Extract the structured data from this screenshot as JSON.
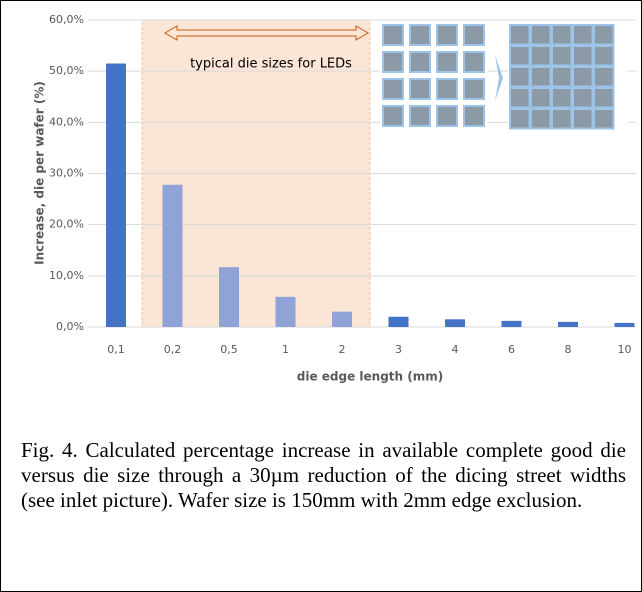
{
  "chart_data": {
    "type": "bar",
    "x_label": "die edge length (mm)",
    "y_label": "Increase, die per wafer (%)",
    "annotation": "typical die sizes for LEDs",
    "categories": [
      "0,1",
      "0,2",
      "0,5",
      "1",
      "2",
      "3",
      "4",
      "6",
      "8",
      "10"
    ],
    "values": [
      51.5,
      27.8,
      11.7,
      5.9,
      3.0,
      2.0,
      1.5,
      1.2,
      1.0,
      0.8
    ],
    "colors": [
      "#4472c4",
      "#8fa3d6",
      "#8fa3d6",
      "#8fa3d6",
      "#8fa3d6",
      "#4472c4",
      "#4472c4",
      "#4472c4",
      "#4472c4",
      "#4472c4"
    ],
    "ylim": [
      0,
      60
    ],
    "yticks": [
      {
        "value": 0,
        "label": "0,0%"
      },
      {
        "value": 10,
        "label": "10,0%"
      },
      {
        "value": 20,
        "label": "20,0%"
      },
      {
        "value": 30,
        "label": "30,0%"
      },
      {
        "value": 40,
        "label": "40,0%"
      },
      {
        "value": 50,
        "label": "50,0%"
      },
      {
        "value": 60,
        "label": "60,0%"
      }
    ],
    "grid": true
  },
  "caption": "Fig. 4. Calculated percentage increase in available complete good die versus die size through a 30µm reduction of the dicing street widths (see inlet picture). Wafer size is 150mm with 2mm edge exclusion."
}
